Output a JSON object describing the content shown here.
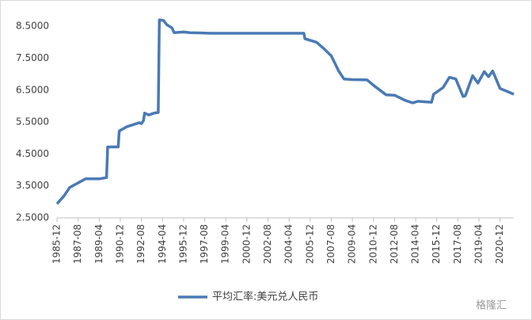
{
  "chart_data": {
    "type": "line",
    "x": [
      "1985-12",
      "1986-07",
      "1986-12",
      "1988-03",
      "1989-04",
      "1989-11",
      "1989-12",
      "1990-10",
      "1990-11",
      "1991-06",
      "1992-06",
      "1992-08",
      "1992-10",
      "1992-11",
      "1993-03",
      "1993-08",
      "1993-12",
      "1994-01",
      "1994-05",
      "1994-08",
      "1995-01",
      "1995-03",
      "1995-12",
      "1996-06",
      "1998-01",
      "2005-06",
      "2005-07",
      "2006-06",
      "2007-01",
      "2007-08",
      "2008-03",
      "2008-08",
      "2009-04",
      "2010-06",
      "2010-12",
      "2011-12",
      "2012-08",
      "2013-06",
      "2014-01",
      "2014-06",
      "2015-07",
      "2015-09",
      "2016-06",
      "2016-12",
      "2017-06",
      "2018-01",
      "2018-03",
      "2018-10",
      "2019-03",
      "2019-09",
      "2020-01",
      "2020-05",
      "2020-12",
      "2021-06",
      "2022-01"
    ],
    "series": [
      {
        "name": "平均汇率:美元兑人民币",
        "color": "#4a7ab5",
        "values": [
          2.94,
          3.2,
          3.45,
          3.72,
          3.72,
          3.76,
          4.72,
          4.72,
          5.22,
          5.35,
          5.48,
          5.45,
          5.55,
          5.78,
          5.72,
          5.78,
          5.8,
          8.7,
          8.68,
          8.55,
          8.45,
          8.3,
          8.32,
          8.3,
          8.28,
          8.28,
          8.11,
          8.0,
          7.8,
          7.57,
          7.1,
          6.85,
          6.83,
          6.82,
          6.65,
          6.35,
          6.34,
          6.18,
          6.1,
          6.15,
          6.12,
          6.37,
          6.58,
          6.9,
          6.85,
          6.3,
          6.32,
          6.95,
          6.72,
          7.08,
          6.92,
          7.1,
          6.55,
          6.47,
          6.37
        ]
      }
    ],
    "xlim": [
      "1985-12",
      "2022-01"
    ],
    "xticks": [
      "1985-12",
      "1987-08",
      "1989-04",
      "1990-12",
      "1992-08",
      "1994-04",
      "1995-12",
      "1997-08",
      "1999-04",
      "2000-12",
      "2002-08",
      "2004-04",
      "2005-12",
      "2007-08",
      "2009-04",
      "2010-12",
      "2012-08",
      "2014-04",
      "2015-12",
      "2017-08",
      "2019-04",
      "2020-12"
    ],
    "ylim": [
      2.5,
      9.0
    ],
    "yticks": [
      {
        "value": 2.5,
        "label": "2.5000"
      },
      {
        "value": 3.5,
        "label": "3.5000"
      },
      {
        "value": 4.5,
        "label": "4.5000"
      },
      {
        "value": 5.5,
        "label": "5.5000"
      },
      {
        "value": 6.5,
        "label": "6.5000"
      },
      {
        "value": 7.5,
        "label": "7.5000"
      },
      {
        "value": 8.5,
        "label": "8.5000"
      }
    ],
    "grid": false,
    "legend": "bottom",
    "watermark": "格隆汇"
  }
}
